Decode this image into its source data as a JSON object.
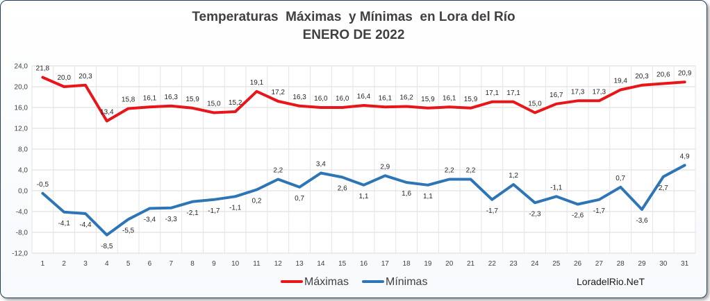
{
  "chart_data": {
    "type": "line",
    "title": "Temperaturas  Máximas  y Mínimas  en Lora del Río",
    "subtitle": "ENERO DE 2022",
    "categories": [
      "1",
      "2",
      "3",
      "4",
      "5",
      "6",
      "7",
      "8",
      "9",
      "10",
      "11",
      "12",
      "13",
      "14",
      "15",
      "16",
      "17",
      "18",
      "19",
      "20",
      "21",
      "22",
      "23",
      "24",
      "25",
      "26",
      "27",
      "28",
      "29",
      "30",
      "31"
    ],
    "yticks": [
      "24,0",
      "20,0",
      "16,0",
      "12,0",
      "8,0",
      "4,0",
      "0,0",
      "-4,0",
      "-8,0",
      "-12,0"
    ],
    "ylim": [
      -12,
      24
    ],
    "grid": true,
    "legend_position": "bottom",
    "series": [
      {
        "name": "Máximas",
        "color": "#e8151b",
        "values": [
          21.8,
          20.0,
          20.3,
          13.4,
          15.8,
          16.1,
          16.3,
          15.9,
          15.0,
          15.2,
          19.1,
          17.2,
          16.3,
          16.0,
          16.0,
          16.4,
          16.1,
          16.2,
          15.9,
          16.1,
          15.9,
          17.1,
          17.1,
          15.0,
          16.7,
          17.3,
          17.3,
          19.4,
          20.3,
          20.6,
          20.9
        ],
        "labels": [
          "21,8",
          "20,0",
          "20,3",
          "13,4",
          "15,8",
          "16,1",
          "16,3",
          "15,9",
          "15,0",
          "15,2",
          "19,1",
          "17,2",
          "16,3",
          "16,0",
          "16,0",
          "16,4",
          "16,1",
          "16,2",
          "15,9",
          "16,1",
          "15,9",
          "17,1",
          "17,1",
          "15,0",
          "16,7",
          "17,3",
          "17,3",
          "19,4",
          "20,3",
          "20,6",
          "20,9"
        ]
      },
      {
        "name": "Mínimas",
        "color": "#2e75b6",
        "values": [
          -0.5,
          -4.1,
          -4.4,
          -8.5,
          -5.5,
          -3.4,
          -3.3,
          -2.1,
          -1.7,
          -1.1,
          0.2,
          2.2,
          0.7,
          3.4,
          2.6,
          1.1,
          2.9,
          1.6,
          1.1,
          2.2,
          2.2,
          -1.7,
          1.2,
          -2.3,
          -1.1,
          -2.6,
          -1.7,
          0.7,
          -3.6,
          2.7,
          4.9
        ],
        "labels": [
          "-0,5",
          "-4,1",
          "-4,4",
          "-8,5",
          "-5,5",
          "-3,4",
          "-3,3",
          "-2,1",
          "-1,7",
          "-1,1",
          "0,2",
          "2,2",
          "0,7",
          "3,4",
          "2,6",
          "1,1",
          "2,9",
          "1,6",
          "1,1",
          "2,2",
          "2,2",
          "-1,7",
          "1,2",
          "-2,3",
          "-1,1",
          "-2,6",
          "-1,7",
          "0,7",
          "-3,6",
          "2,7",
          "4,9"
        ]
      }
    ],
    "credit": "LoradelRio.NeT"
  }
}
